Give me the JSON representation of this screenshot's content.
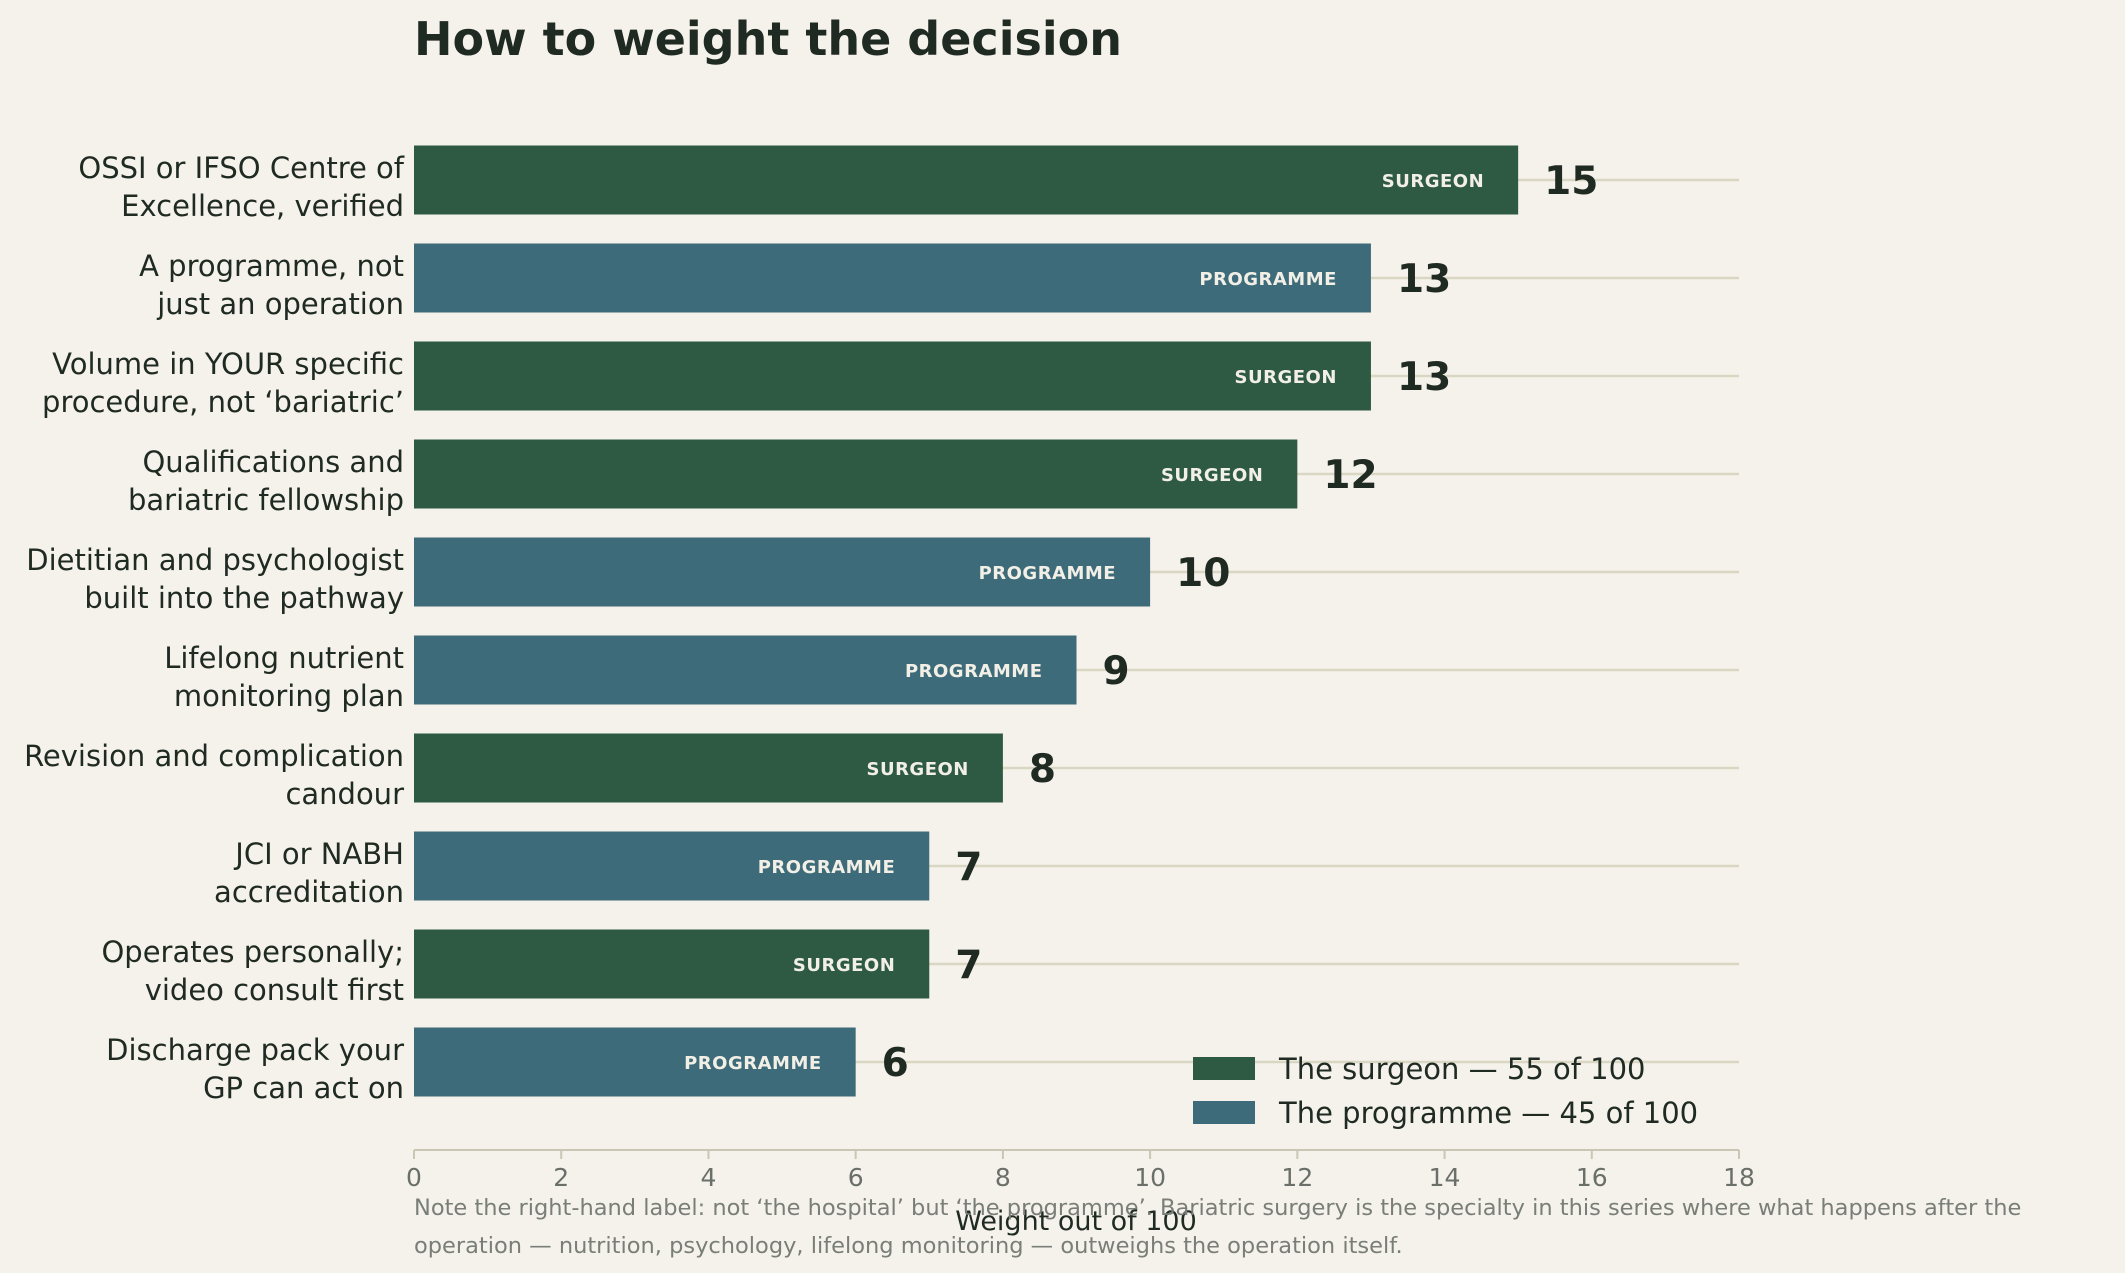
{
  "chart_data": {
    "type": "bar",
    "orientation": "horizontal",
    "title": "How to weight the decision",
    "xlabel": "Weight out of 100",
    "ylabel": "",
    "xlim": [
      0,
      18
    ],
    "xticks": [
      0,
      2,
      4,
      6,
      8,
      10,
      12,
      14,
      16,
      18
    ],
    "grid": "horizontal guide lines per bar",
    "legend_position": "bottom-right",
    "bars": [
      {
        "label_lines": [
          "OSSI or IFSO Centre of",
          "Excellence, verified"
        ],
        "value": 15,
        "group": "SURGEON"
      },
      {
        "label_lines": [
          "A programme, not",
          "just an operation"
        ],
        "value": 13,
        "group": "PROGRAMME"
      },
      {
        "label_lines": [
          "Volume in YOUR specific",
          "procedure, not ‘bariatric’"
        ],
        "value": 13,
        "group": "SURGEON"
      },
      {
        "label_lines": [
          "Qualifications and",
          "bariatric fellowship"
        ],
        "value": 12,
        "group": "SURGEON"
      },
      {
        "label_lines": [
          "Dietitian and psychologist",
          "built into the pathway"
        ],
        "value": 10,
        "group": "PROGRAMME"
      },
      {
        "label_lines": [
          "Lifelong nutrient",
          "monitoring plan"
        ],
        "value": 9,
        "group": "PROGRAMME"
      },
      {
        "label_lines": [
          "Revision and complication",
          "candour"
        ],
        "value": 8,
        "group": "SURGEON"
      },
      {
        "label_lines": [
          "JCI or NABH",
          "accreditation"
        ],
        "value": 7,
        "group": "PROGRAMME"
      },
      {
        "label_lines": [
          "Operates personally;",
          "video consult first"
        ],
        "value": 7,
        "group": "SURGEON"
      },
      {
        "label_lines": [
          "Discharge pack your",
          "GP can act on"
        ],
        "value": 6,
        "group": "PROGRAMME"
      }
    ],
    "groups": {
      "SURGEON": {
        "color": "#2e5a43",
        "legend": "The surgeon — 55 of 100"
      },
      "PROGRAMME": {
        "color": "#3e6b7a",
        "legend": "The programme — 45 of 100"
      }
    },
    "note_lines": [
      "Note the right-hand label: not ‘the hospital’ but ‘the programme’. Bariatric surgery is the specialty in this series where what happens after the",
      "operation — nutrition, psychology, lifelong monitoring — outweighs the operation itself."
    ]
  },
  "colors": {
    "background": "#f5f2eb",
    "guide_line": "#d9d6c4",
    "axis": "#c9c6b4",
    "text": "#1f2a22",
    "muted": "#7a7e78"
  }
}
